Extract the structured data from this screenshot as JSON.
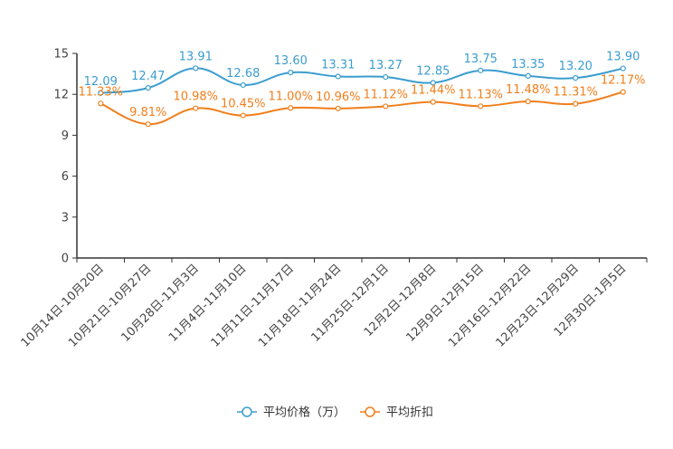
{
  "chart_data": {
    "type": "line",
    "title": "",
    "xlabel": "",
    "ylabel": "",
    "ylim": [
      0,
      15
    ],
    "yticks": [
      0,
      3,
      6,
      9,
      12,
      15
    ],
    "grid": false,
    "legend_position": "bottom",
    "categories": [
      "10月14日-10月20日",
      "10月21日-10月27日",
      "10月28日-11月3日",
      "11月4日-11月10日",
      "11月11日-11月17日",
      "11月18日-11月24日",
      "11月25日-12月1日",
      "12月2日-12月8日",
      "12月9日-12月15日",
      "12月16日-12月22日",
      "12月23日-12月29日",
      "12月30日-1月5日"
    ],
    "series": [
      {
        "name": "平均价格（万）",
        "color": "#3b9dcf",
        "values": [
          12.09,
          12.47,
          13.91,
          12.68,
          13.6,
          13.31,
          13.27,
          12.85,
          13.75,
          13.35,
          13.2,
          13.9
        ],
        "labels": [
          "12.09",
          "12.47",
          "13.91",
          "12.68",
          "13.60",
          "13.31",
          "13.27",
          "12.85",
          "13.75",
          "13.35",
          "13.20",
          "13.90"
        ]
      },
      {
        "name": "平均折扣",
        "color": "#f07f1c",
        "values": [
          11.33,
          9.81,
          10.98,
          10.45,
          11.0,
          10.96,
          11.12,
          11.44,
          11.13,
          11.48,
          11.31,
          12.17
        ],
        "labels": [
          "11.33%",
          "9.81%",
          "10.98%",
          "10.45%",
          "11.00%",
          "10.96%",
          "11.12%",
          "11.44%",
          "11.13%",
          "11.48%",
          "11.31%",
          "12.17%"
        ]
      }
    ]
  }
}
